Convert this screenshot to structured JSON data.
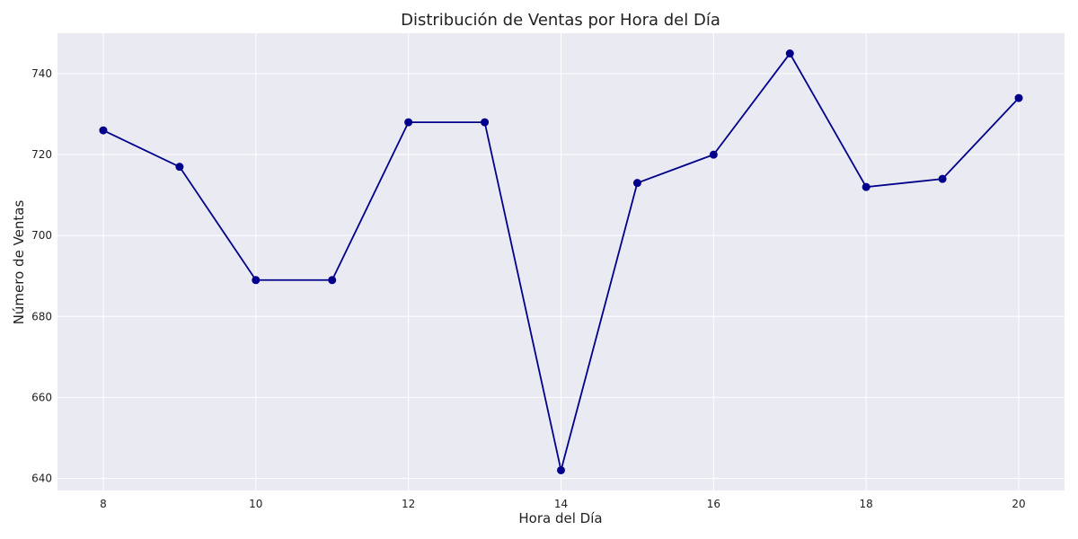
{
  "chart_data": {
    "type": "line",
    "title": "Distribución de Ventas por Hora del Día",
    "xlabel": "Hora del Día",
    "ylabel": "Número de Ventas",
    "x": [
      8,
      9,
      10,
      11,
      12,
      13,
      14,
      15,
      16,
      17,
      18,
      19,
      20
    ],
    "series": [
      {
        "values": [
          726,
          717,
          689,
          689,
          728,
          728,
          642,
          713,
          720,
          745,
          712,
          714,
          734
        ]
      }
    ],
    "xlim": [
      7.4,
      20.6
    ],
    "ylim": [
      637,
      750
    ],
    "xticks": [
      8,
      10,
      12,
      14,
      16,
      18,
      20
    ],
    "yticks": [
      640,
      660,
      680,
      700,
      720,
      740
    ],
    "grid": true,
    "colors": {
      "line": "#00008b",
      "marker": "#00008b",
      "plot_background": "#eaeaf2",
      "grid": "#ffffff"
    },
    "marker": "circle"
  }
}
